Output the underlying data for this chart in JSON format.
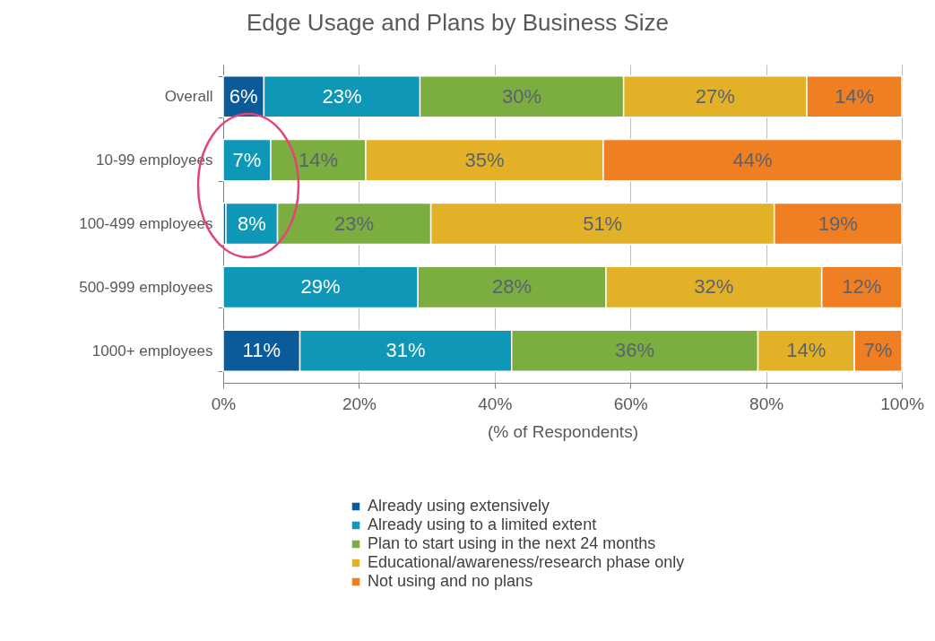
{
  "chart_data": {
    "type": "bar",
    "orientation": "horizontal",
    "stacked": true,
    "title": "Edge Usage and Plans by Business Size",
    "xlabel": "(% of Respondents)",
    "categories": [
      "Overall",
      "10-99 employees",
      "100-499 employees",
      "500-999 employees",
      "1000+ employees"
    ],
    "series": [
      {
        "name": "Already using extensively",
        "color": "#0b5a9a",
        "values": [
          6,
          null,
          0.4,
          null,
          11.3
        ],
        "value_labels": [
          "6%",
          null,
          null,
          null,
          "11%"
        ]
      },
      {
        "name": "Already using to a limited extent",
        "color": "#0f97b7",
        "values": [
          23,
          7,
          7.6,
          28.7,
          31.2
        ],
        "value_labels": [
          "23%",
          "7%",
          "8%",
          "29%",
          "31%"
        ]
      },
      {
        "name": "Plan to start using in the next 24 months",
        "color": "#7cad40",
        "values": [
          30,
          14,
          22.6,
          27.7,
          36.3
        ],
        "value_labels": [
          "30%",
          "14%",
          "23%",
          "28%",
          "36%"
        ]
      },
      {
        "name": "Educational/awareness/research phase only",
        "color": "#e2b127",
        "values": [
          27,
          35,
          50.6,
          31.8,
          14.2
        ],
        "value_labels": [
          "27%",
          "35%",
          "51%",
          "32%",
          "14%"
        ]
      },
      {
        "name": "Not using and no plans",
        "color": "#f07e22",
        "values": [
          14,
          44,
          18.8,
          11.8,
          7.0
        ],
        "value_labels": [
          "14%",
          "44%",
          "19%",
          "12%",
          "7%"
        ]
      }
    ],
    "xlim": [
      0,
      100
    ],
    "xticks": [
      {
        "value": 0,
        "label": "0%"
      },
      {
        "value": 20,
        "label": "20%"
      },
      {
        "value": 40,
        "label": "40%"
      },
      {
        "value": 60,
        "label": "60%"
      },
      {
        "value": 80,
        "label": "80%"
      },
      {
        "value": 100,
        "label": "100%"
      }
    ],
    "grid": "x",
    "legend": "bottom"
  }
}
